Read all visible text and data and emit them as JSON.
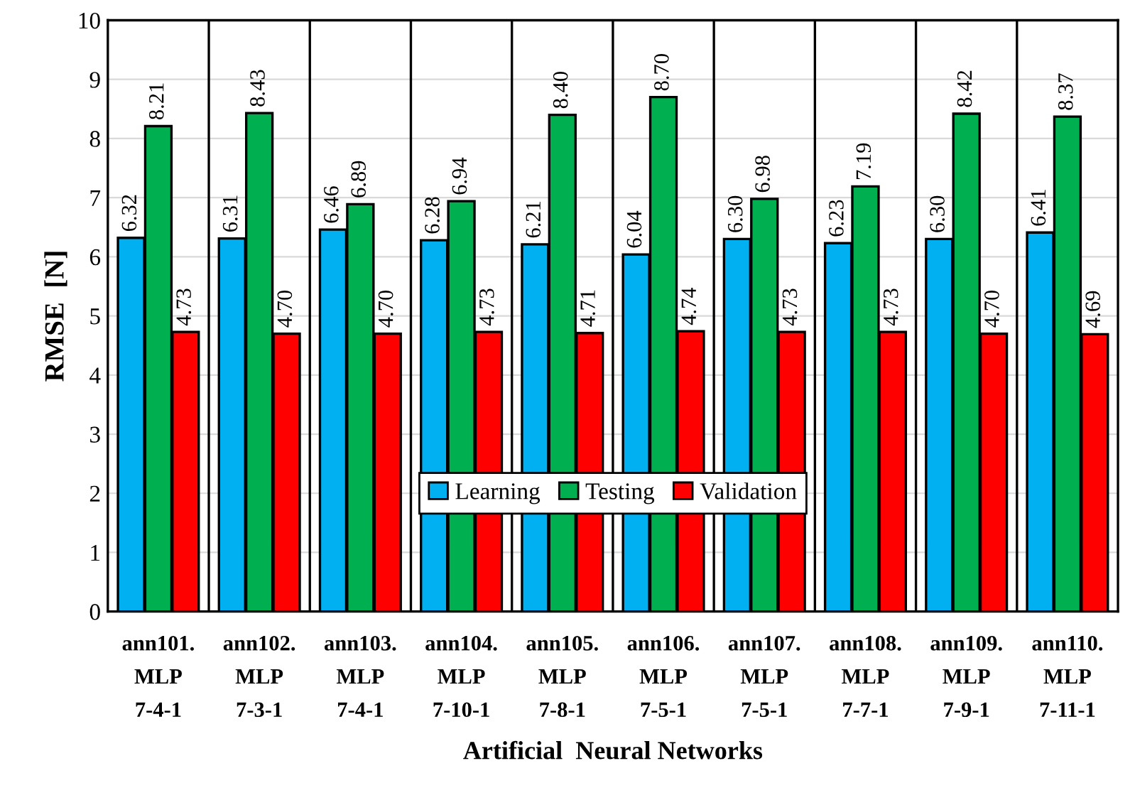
{
  "chart_data": {
    "type": "bar",
    "xlabel": "Artificial  Neural Networks",
    "ylabel": "RMSE  [N]",
    "categories": [
      "ann101.\nMLP\n7-4-1",
      "ann102.\nMLP\n7-3-1",
      "ann103.\nMLP\n7-4-1",
      "ann104.\nMLP\n7-10-1",
      "ann105.\nMLP\n7-8-1",
      "ann106.\nMLP\n7-5-1",
      "ann107.\nMLP\n7-5-1",
      "ann108.\nMLP\n7-7-1",
      "ann109.\nMLP\n7-9-1",
      "ann110.\nMLP\n7-11-1"
    ],
    "series": [
      {
        "name": "Learning",
        "color": "#00b0f0",
        "values": [
          6.32,
          6.31,
          6.46,
          6.28,
          6.21,
          6.04,
          6.3,
          6.23,
          6.3,
          6.41
        ],
        "value_labels": [
          "6.32",
          "6.31",
          "6.46",
          "6.28",
          "6.21",
          "6.04",
          "6.30",
          "6.23",
          "6.30",
          "6.41"
        ]
      },
      {
        "name": "Testing",
        "color": "#00b050",
        "values": [
          8.21,
          8.43,
          6.89,
          6.94,
          8.4,
          8.7,
          6.98,
          7.19,
          8.42,
          8.37
        ],
        "value_labels": [
          "8.21",
          "8.43",
          "6.89",
          "6.94",
          "8.40",
          "8.70",
          "6.98",
          "7.19",
          "8.42",
          "8.37"
        ]
      },
      {
        "name": "Validation",
        "color": "#ff0000",
        "values": [
          4.73,
          4.7,
          4.7,
          4.73,
          4.71,
          4.74,
          4.73,
          4.73,
          4.7,
          4.69
        ],
        "value_labels": [
          "4.73",
          "4.70",
          "4.70",
          "4.73",
          "4.71",
          "4.74",
          "4.73",
          "4.73",
          "4.70",
          "4.69"
        ]
      }
    ],
    "ylim": [
      0,
      10
    ],
    "yticks": [
      0,
      1,
      2,
      3,
      4,
      5,
      6,
      7,
      8,
      9,
      10
    ],
    "grid": true,
    "legend": "center"
  }
}
